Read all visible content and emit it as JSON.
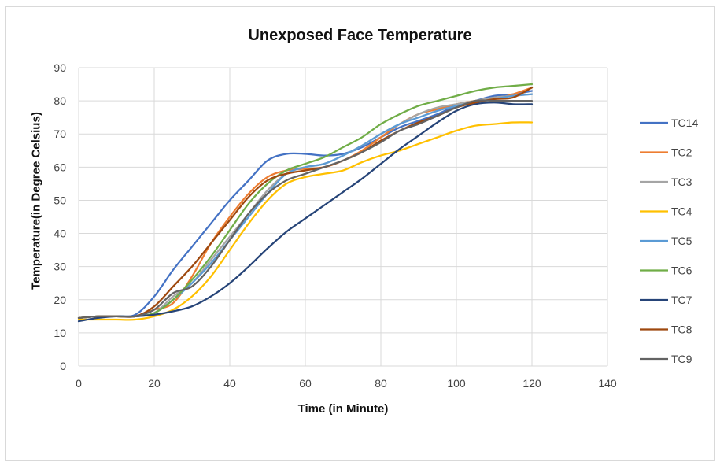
{
  "chart_data": {
    "type": "line",
    "title": "Unexposed Face Temperature",
    "xlabel": "Time (in Minute)",
    "ylabel": "Temperature(in Degree Celsius)",
    "xlim": [
      0,
      140
    ],
    "ylim": [
      0,
      90
    ],
    "xticks": [
      0,
      20,
      40,
      60,
      80,
      100,
      120,
      140
    ],
    "yticks": [
      0,
      10,
      20,
      30,
      40,
      50,
      60,
      70,
      80,
      90
    ],
    "grid": true,
    "legend_position": "right",
    "x": [
      0,
      5,
      10,
      15,
      20,
      25,
      30,
      35,
      40,
      45,
      50,
      55,
      60,
      65,
      70,
      75,
      80,
      85,
      90,
      95,
      100,
      105,
      110,
      115,
      120
    ],
    "series": [
      {
        "name": "TC14",
        "color": "#4472C4",
        "values": [
          14.5,
          15,
          15,
          15.5,
          21,
          29,
          36,
          43,
          50,
          56,
          62,
          64,
          64,
          63.5,
          64,
          66,
          69,
          72,
          74,
          76,
          78.5,
          80,
          81.5,
          82,
          83
        ]
      },
      {
        "name": "TC2",
        "color": "#ED7D31",
        "values": [
          14.5,
          15,
          15,
          15,
          17,
          19,
          27,
          37,
          45,
          52,
          57,
          59,
          59.5,
          60,
          62,
          65,
          69,
          73,
          76,
          77.5,
          79,
          80,
          80.5,
          82,
          84
        ]
      },
      {
        "name": "TC3",
        "color": "#A5A5A5",
        "values": [
          14.5,
          15,
          15,
          15,
          16,
          21,
          25,
          32,
          39,
          46,
          53,
          58,
          60,
          61,
          63.5,
          66.5,
          70,
          73,
          76,
          78,
          79,
          80,
          81,
          81.5,
          82
        ]
      },
      {
        "name": "TC4",
        "color": "#FFC000",
        "values": [
          14,
          14,
          14,
          14,
          15,
          17,
          21,
          27,
          35,
          43,
          50,
          55,
          57,
          58,
          59,
          61.5,
          63.5,
          65,
          67,
          69,
          71,
          72.5,
          73,
          73.5,
          73.5
        ]
      },
      {
        "name": "TC5",
        "color": "#5B9BD5",
        "values": [
          14.5,
          15,
          15,
          15,
          16,
          20,
          25,
          31,
          38,
          45,
          52,
          58,
          60,
          61,
          63.5,
          66.5,
          70,
          73,
          75,
          77,
          78.5,
          79.5,
          80.5,
          81.5,
          82
        ]
      },
      {
        "name": "TC6",
        "color": "#70AD47",
        "values": [
          14.5,
          15,
          15,
          15,
          16,
          20,
          26,
          33,
          41,
          49,
          55,
          59,
          61,
          63,
          66,
          69,
          73,
          76,
          78.5,
          80,
          81.5,
          83,
          84,
          84.5,
          85
        ]
      },
      {
        "name": "TC7",
        "color": "#264478",
        "values": [
          13.5,
          14.5,
          15,
          15,
          15.5,
          16.5,
          18,
          21,
          25,
          30,
          35.5,
          40.5,
          44.5,
          48.5,
          52.5,
          56.5,
          61,
          65.5,
          69.5,
          73.5,
          77,
          79,
          79.5,
          79,
          79
        ]
      },
      {
        "name": "TC8",
        "color": "#9E480E",
        "values": [
          14.5,
          15,
          15,
          15,
          18,
          24,
          30,
          37,
          44,
          51,
          56,
          58,
          59,
          60,
          62,
          64.5,
          68,
          71,
          73.5,
          75.5,
          78,
          79.5,
          80.5,
          81,
          84
        ]
      },
      {
        "name": "TC9",
        "color": "#636363",
        "values": [
          14.5,
          15,
          15,
          15,
          17,
          22,
          24,
          30,
          38,
          46,
          52,
          56,
          58,
          60,
          62,
          64.5,
          67.5,
          71,
          73,
          75.5,
          78,
          80,
          80,
          80,
          80
        ]
      }
    ]
  }
}
